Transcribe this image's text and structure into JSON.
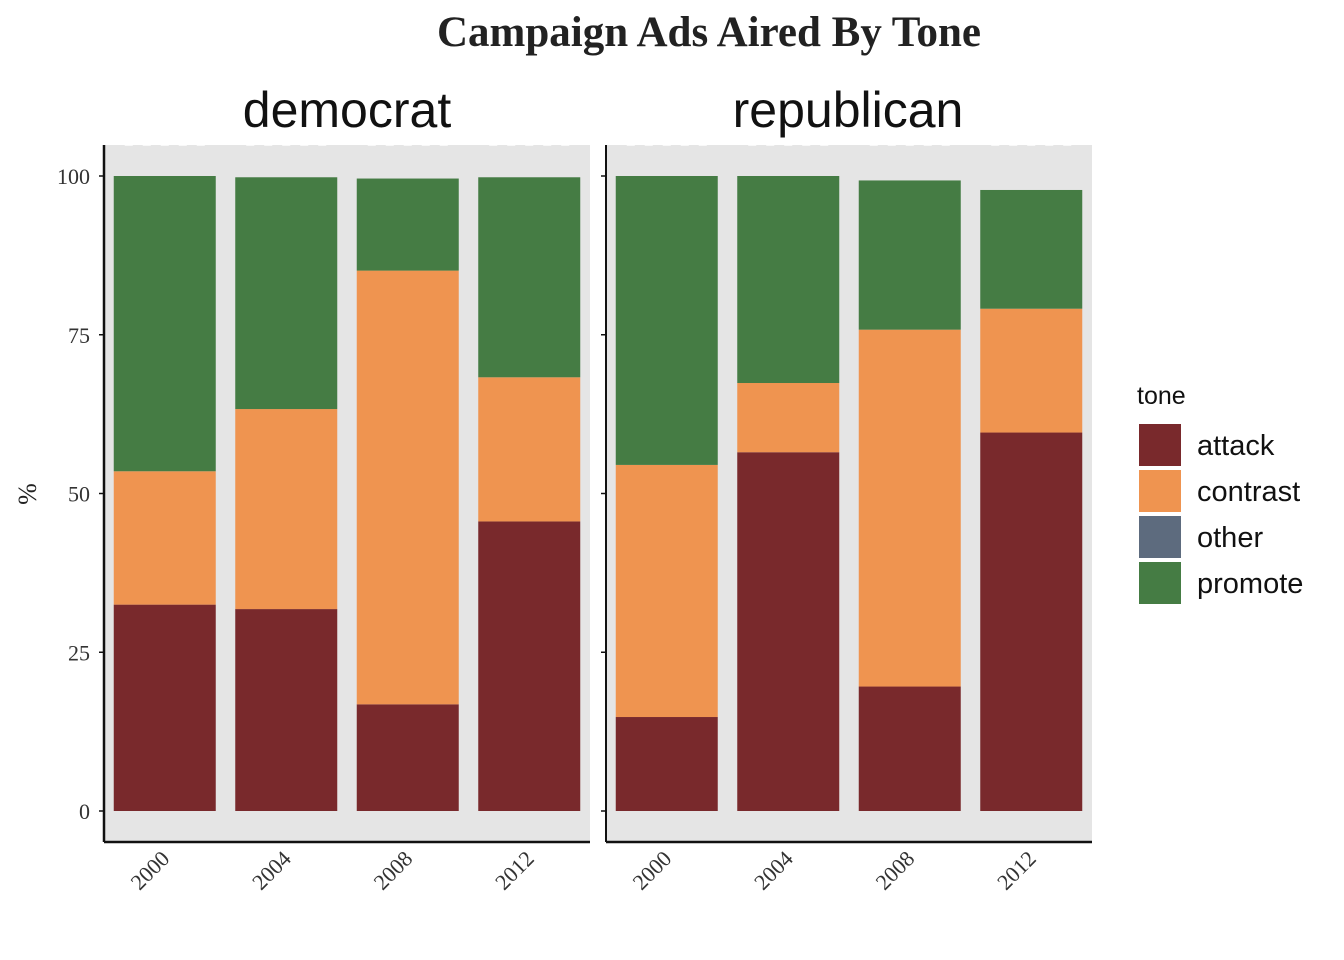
{
  "chart_data": {
    "type": "bar",
    "stacked": true,
    "title": "Campaign Ads Aired By Tone",
    "xlabel": "",
    "ylabel": "%",
    "ylim": [
      0,
      105
    ],
    "yticks": [
      0,
      25,
      50,
      75,
      100
    ],
    "categories": [
      "2000",
      "2004",
      "2008",
      "2012"
    ],
    "legend": {
      "title": "tone",
      "position": "right",
      "entries": [
        "attack",
        "contrast",
        "other",
        "promote"
      ]
    },
    "colors": {
      "attack": "#79292C",
      "contrast": "#EF9450",
      "other": "#5D6B7E",
      "promote": "#457C44",
      "panel_bg": "#E5E5E5"
    },
    "panels": [
      {
        "label": "democrat",
        "series": [
          {
            "name": "attack",
            "values": [
              32.5,
              31.8,
              16.8,
              45.6
            ]
          },
          {
            "name": "contrast",
            "values": [
              21.0,
              31.5,
              68.3,
              22.7
            ]
          },
          {
            "name": "other",
            "values": [
              0,
              0,
              0,
              0
            ]
          },
          {
            "name": "promote",
            "values": [
              46.5,
              36.5,
              14.5,
              31.5
            ]
          }
        ]
      },
      {
        "label": "republican",
        "series": [
          {
            "name": "attack",
            "values": [
              14.8,
              56.5,
              19.6,
              59.6
            ]
          },
          {
            "name": "contrast",
            "values": [
              39.7,
              10.9,
              56.2,
              19.5
            ]
          },
          {
            "name": "other",
            "values": [
              0,
              0,
              0,
              0
            ]
          },
          {
            "name": "promote",
            "values": [
              45.5,
              32.6,
              23.5,
              18.7
            ]
          }
        ]
      }
    ]
  }
}
